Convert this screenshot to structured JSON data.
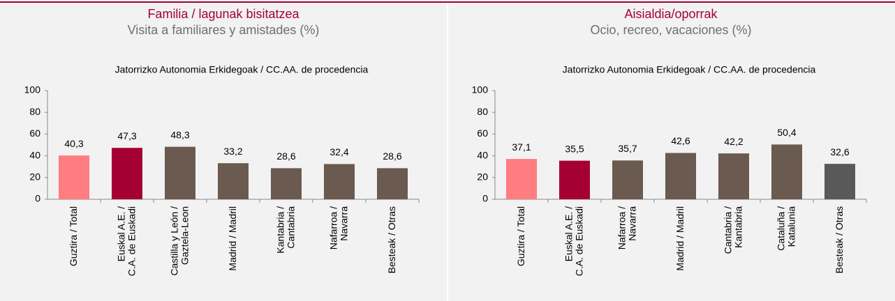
{
  "chart_data": [
    {
      "type": "bar",
      "title": "Familia / lagunak bisitatzea",
      "subtitle": "Visita a familiares y amistades (%)",
      "annotation": "Jatorrizko Autonomia  Erkidegoak  /  CC.AA. de procedencia",
      "categories": [
        "Guztira / Total",
        "Euskal A.E. /\nC.A. de Euskadi",
        "Castilla y León /\nGaztela-Leon",
        "Madrid / Madril",
        "Kantabria /\nCantabria",
        "Nafarroa /\nNavarra",
        "Besteak / Otras"
      ],
      "values": [
        40.3,
        47.3,
        48.3,
        33.2,
        28.6,
        32.4,
        28.6
      ],
      "value_labels": [
        "40,3",
        "47,3",
        "48,3",
        "33,2",
        "28,6",
        "32,4",
        "28,6"
      ],
      "colors": [
        "#ff7c80",
        "#a50034",
        "#6a5a50",
        "#6a5a50",
        "#6a5a50",
        "#6a5a50",
        "#6a5a50"
      ],
      "ylim": [
        0,
        100
      ],
      "yticks": [
        0,
        20,
        40,
        60,
        80,
        100
      ]
    },
    {
      "type": "bar",
      "title": "Aisialdia/oporrak",
      "subtitle": "Ocio, recreo, vacaciones (%)",
      "annotation": "Jatorrizko Autonomia  Erkidegoak  /  CC.AA. de procedencia",
      "categories": [
        "Guztira / Total",
        "Euskal A.E. /\nC.A. de Euskadi",
        "Nafarroa /\nNavarra",
        "Madrid / Madril",
        "Cantabria /\nKantabria",
        "Cataluña /\nKatalunia",
        "Besteak / Otras"
      ],
      "values": [
        37.1,
        35.5,
        35.7,
        42.6,
        42.2,
        50.4,
        32.6
      ],
      "value_labels": [
        "37,1",
        "35,5",
        "35,7",
        "42,6",
        "42,2",
        "50,4",
        "32,6"
      ],
      "colors": [
        "#ff7c80",
        "#a50034",
        "#6a5a50",
        "#6a5a50",
        "#6a5a50",
        "#6a5a50",
        "#595959"
      ],
      "ylim": [
        0,
        100
      ],
      "yticks": [
        0,
        20,
        40,
        60,
        80,
        100
      ]
    }
  ]
}
